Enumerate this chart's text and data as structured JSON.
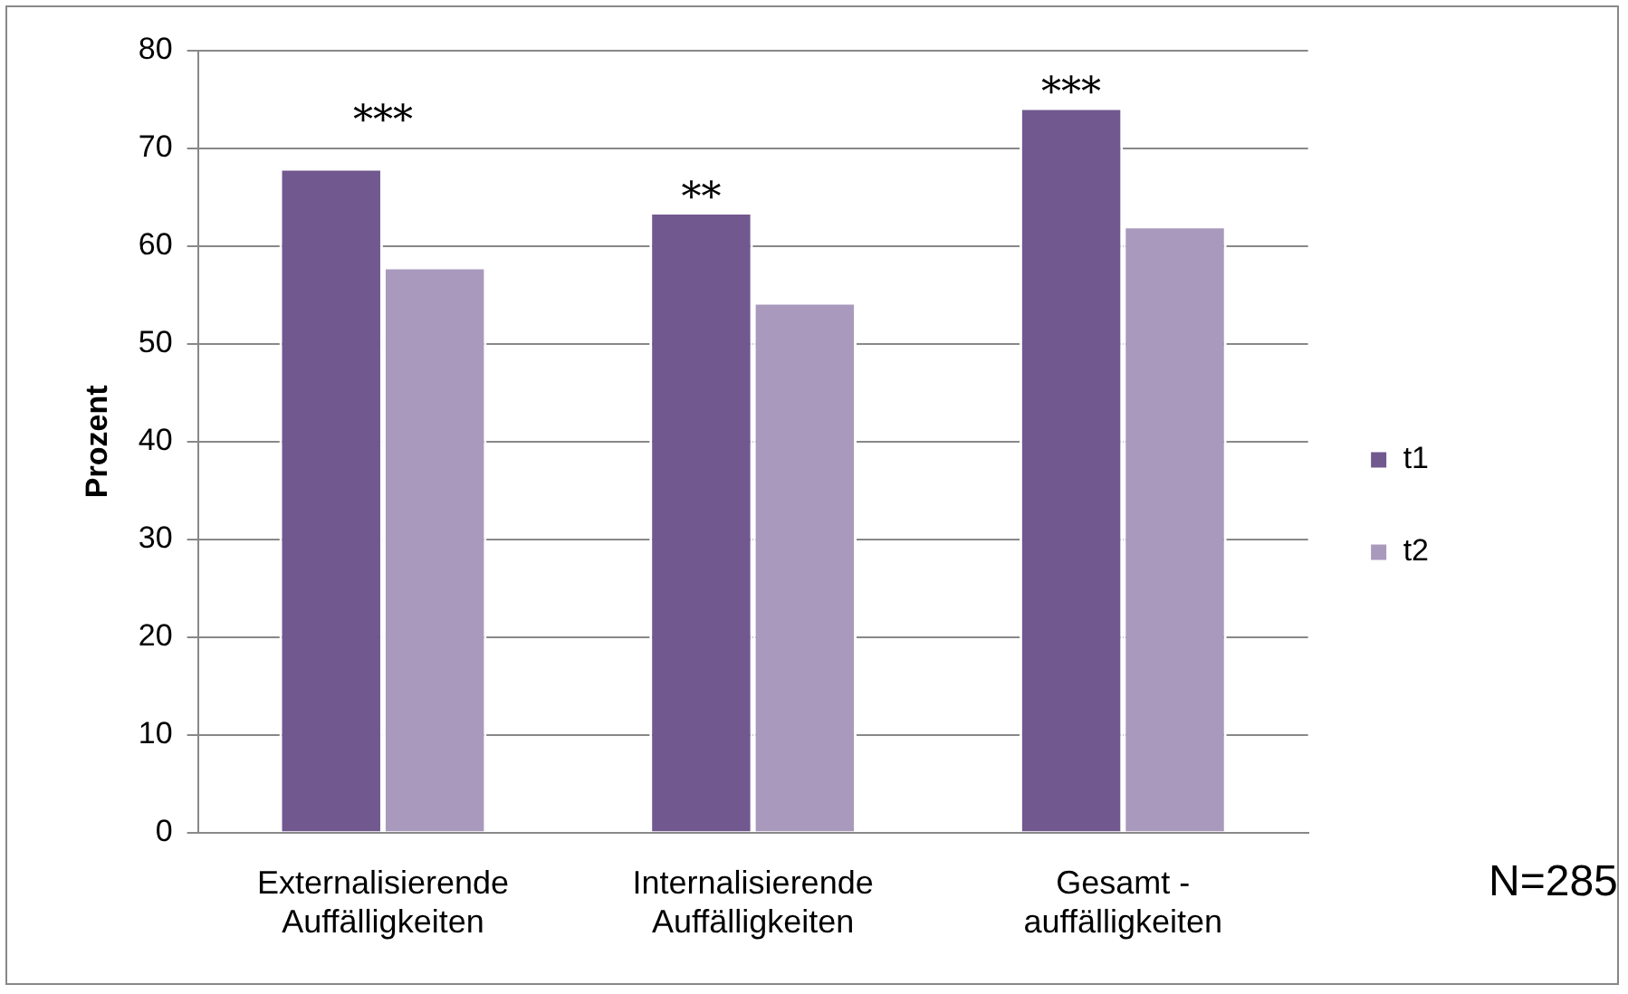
{
  "chart_data": {
    "type": "bar",
    "ylabel": "Prozent",
    "categories": [
      "Externalisierende\nAuffälligkeiten",
      "Internalisierende\nAuffälligkeiten",
      "Gesamt -\nauffälligkeiten"
    ],
    "series": [
      {
        "name": "t1",
        "color": "#71588f",
        "values": [
          68,
          63.5,
          74.2
        ]
      },
      {
        "name": "t2",
        "color": "#a899bd",
        "values": [
          57.9,
          54.3,
          62.1
        ]
      }
    ],
    "ylim": [
      0,
      80
    ],
    "yticks": [
      0,
      10,
      20,
      30,
      40,
      50,
      60,
      70,
      80
    ],
    "grid": "y",
    "legend": "right",
    "annotations": [
      {
        "text": "***",
        "x": "Externalisierende\nAuffälligkeiten",
        "y": 68
      },
      {
        "text": "**",
        "x": "Internalisierende\nAuffälligkeiten",
        "y": 63.5
      },
      {
        "text": "***",
        "x": "Gesamt -\nauffälligkeiten",
        "y": 74.2
      },
      "N=285"
    ]
  }
}
